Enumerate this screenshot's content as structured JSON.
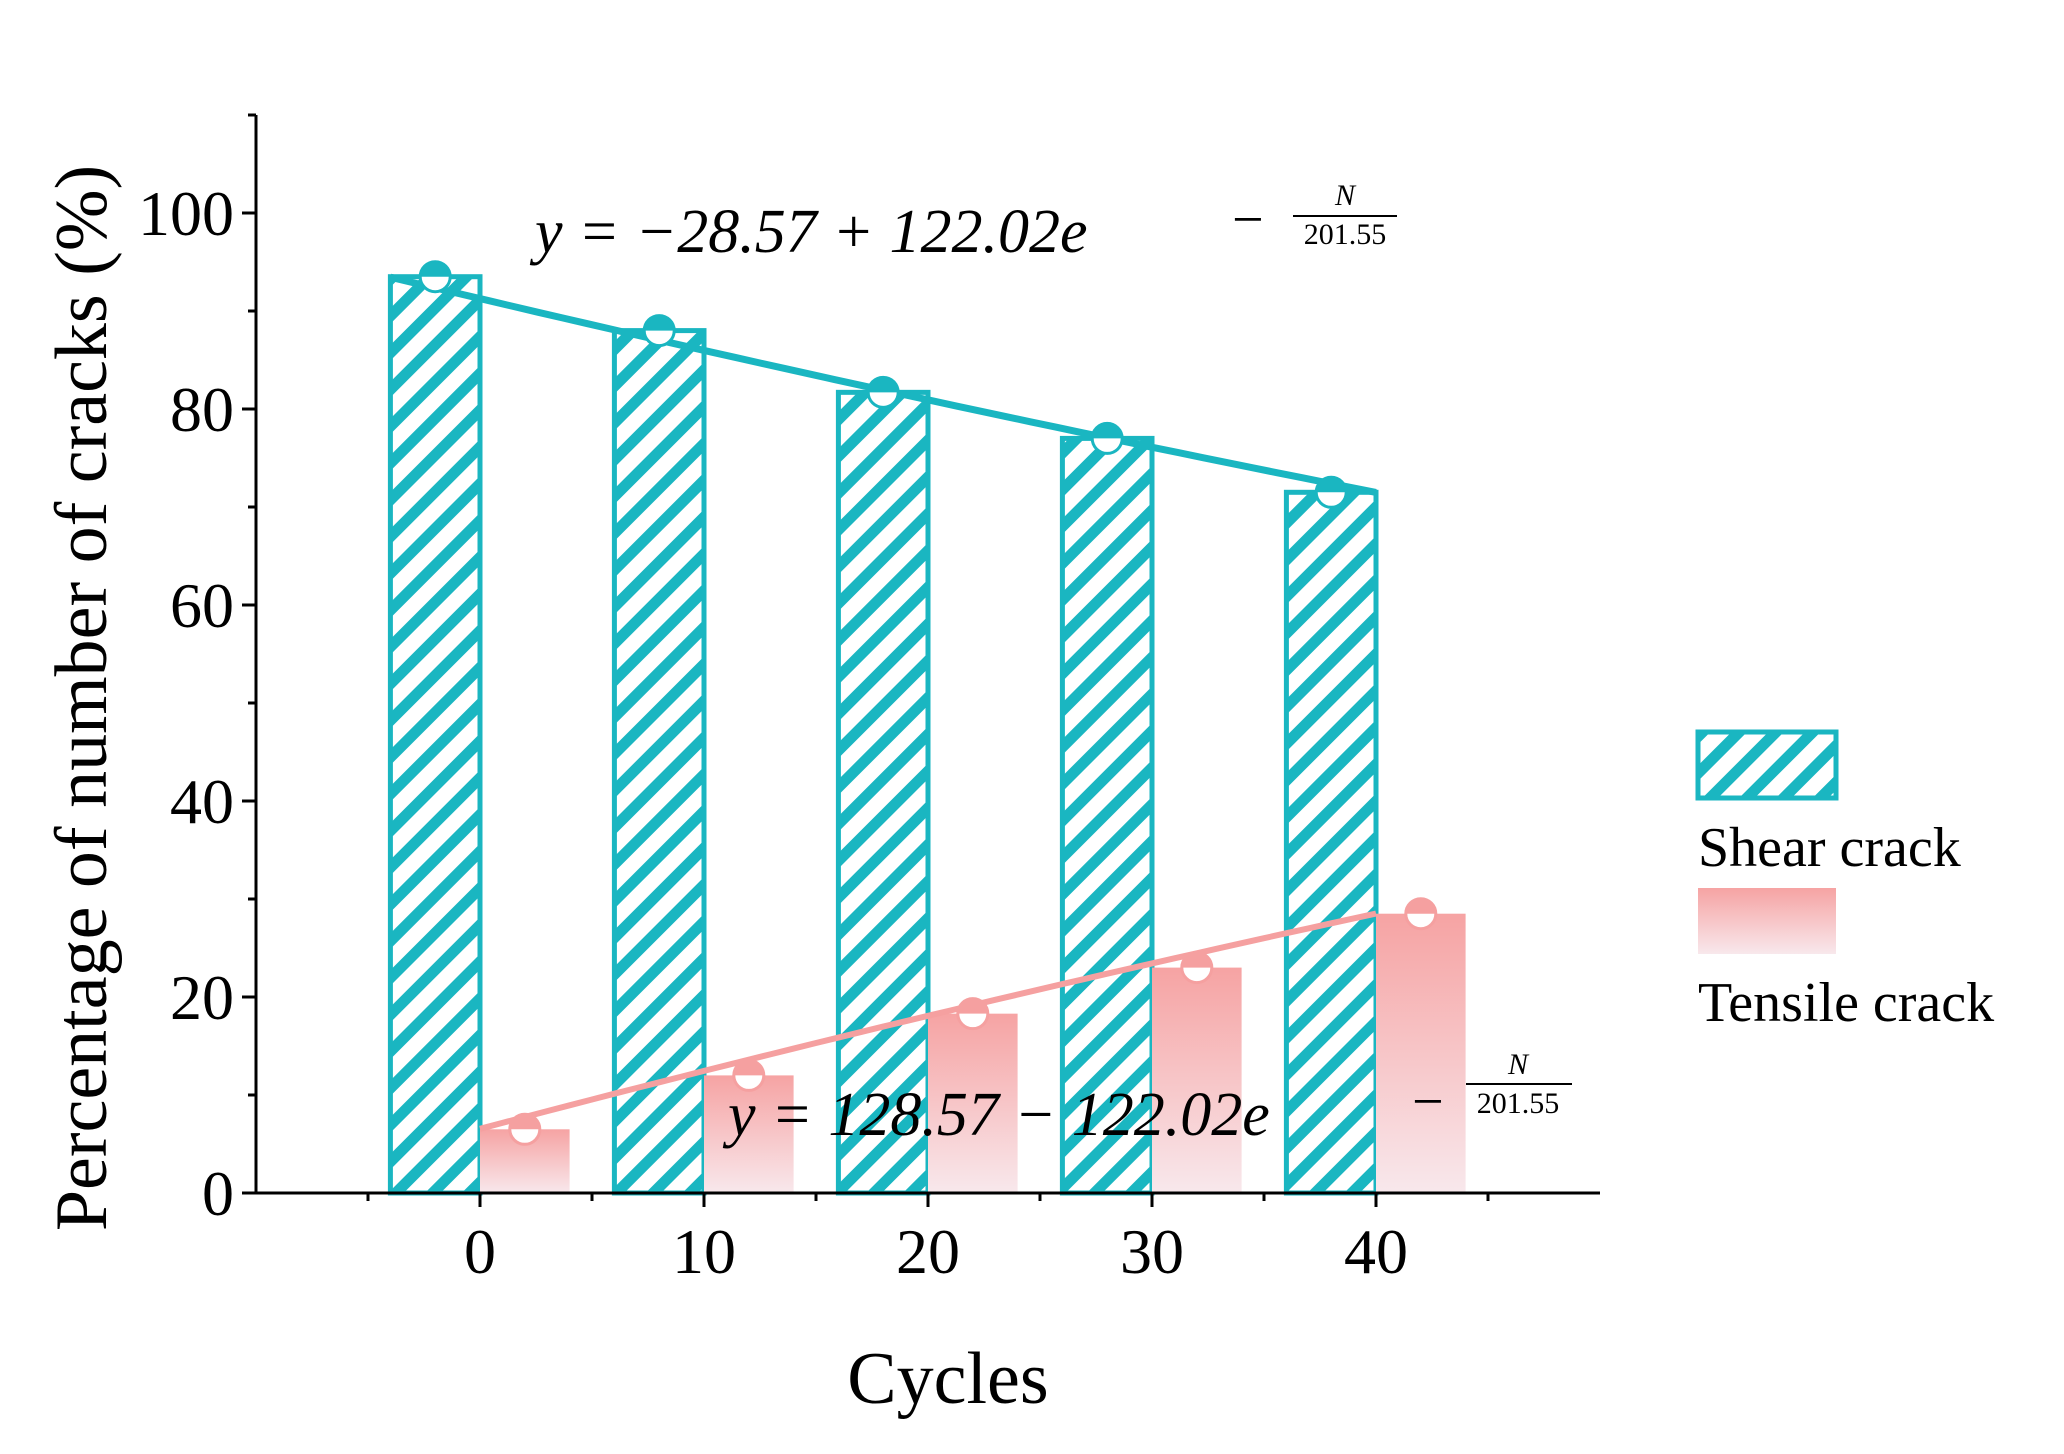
{
  "chart_data": {
    "type": "bar",
    "categories": [
      "0",
      "10",
      "20",
      "30",
      "40"
    ],
    "x": [
      0,
      10,
      20,
      30,
      40
    ],
    "series": [
      {
        "name": "Shear crack",
        "values": [
          93.5,
          88.0,
          81.7,
          77.0,
          71.5
        ],
        "color": "#1ab6c1",
        "fill": "hatched"
      },
      {
        "name": "Tensile crack",
        "values": [
          6.5,
          12.0,
          18.3,
          23.0,
          28.5
        ],
        "color": "#f28e8e",
        "fill": "gradient"
      }
    ],
    "fits": [
      {
        "series": "Shear crack",
        "label_prefix": "y = −28.57 + 122.02e",
        "label_exp_num": "N",
        "label_exp_den": "201.55",
        "a": -28.57,
        "b": 122.02,
        "c": 201.55,
        "sign": -1,
        "color": "#1ab6c1"
      },
      {
        "series": "Tensile crack",
        "label_prefix": "y = 128.57 − 122.02e",
        "label_exp_num": "N",
        "label_exp_den": "201.55",
        "a": 128.57,
        "b": 122.02,
        "c": 201.55,
        "sign": 1,
        "color": "#f5a0a0"
      }
    ],
    "xlabel": "Cycles",
    "ylabel": "Percentage of number of cracks (%)",
    "ylim": [
      0,
      110
    ],
    "xlim": [
      -10,
      50
    ],
    "yticks": [
      0,
      20,
      40,
      60,
      80,
      100
    ],
    "yticks_minor": [
      10,
      30,
      50,
      70,
      90,
      110
    ],
    "xticks": [
      0,
      10,
      20,
      30,
      40
    ],
    "legend": {
      "position": "right",
      "entries": [
        "Shear crack",
        "Tensile crack"
      ]
    },
    "grid": false
  }
}
